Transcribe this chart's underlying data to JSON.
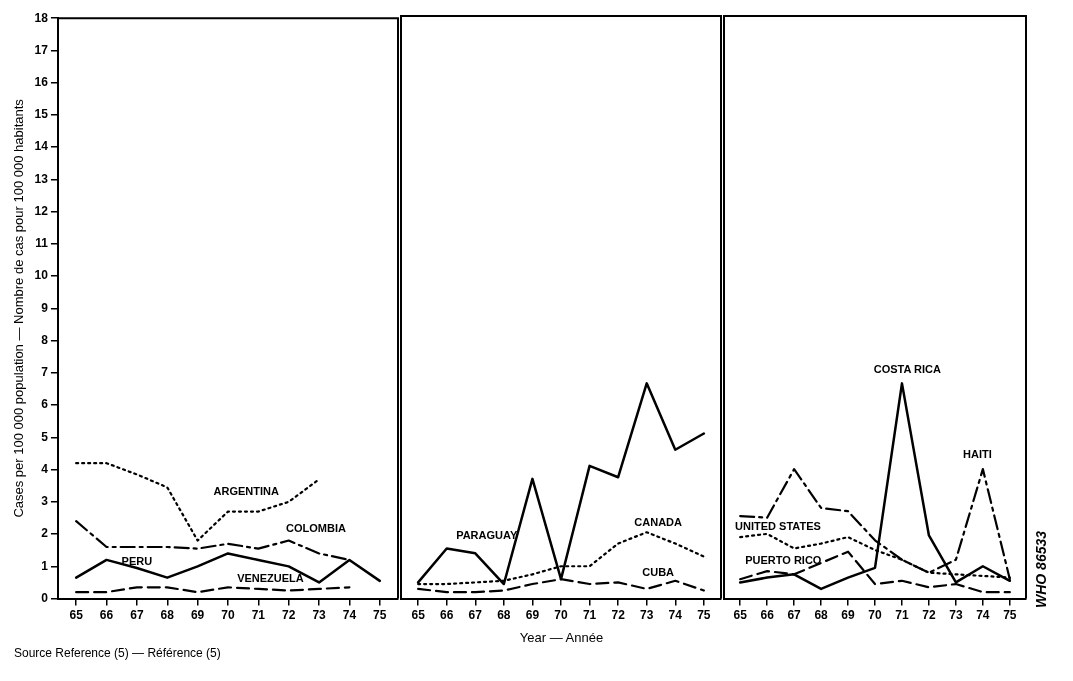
{
  "chart_data": [
    {
      "type": "line",
      "ylabel": "Cases per 100 000 population — Nombre de cas pour 100 000 habitants",
      "annotations": [
        "Source  Reference (5) — Référence (5)"
      ],
      "x": [
        65,
        66,
        67,
        68,
        69,
        70,
        71,
        72,
        73,
        74,
        75
      ],
      "xlim": [
        64.4,
        75.6
      ],
      "xticks": [
        65,
        66,
        67,
        68,
        69,
        70,
        71,
        72,
        73,
        74,
        75
      ],
      "ylim": [
        0,
        18
      ],
      "yticks": [
        0,
        1,
        2,
        3,
        4,
        5,
        6,
        7,
        8,
        9,
        10,
        11,
        12,
        13,
        14,
        15,
        16,
        17,
        18
      ],
      "grid": false,
      "legend": false,
      "marker": "none",
      "series": [
        {
          "name": "ARGENTINA",
          "color": "#000000",
          "line_style": "dotted",
          "values": [
            4.2,
            4.2,
            3.85,
            3.45,
            1.8,
            2.7,
            2.7,
            3.0,
            3.7,
            null,
            null
          ]
        },
        {
          "name": "COLOMBIA",
          "color": "#000000",
          "line_style": "dashdot",
          "values": [
            2.4,
            1.6,
            1.6,
            1.6,
            1.55,
            1.7,
            1.55,
            1.8,
            1.4,
            1.2,
            null
          ]
        },
        {
          "name": "PERU",
          "color": "#000000",
          "line_style": "solid",
          "values": [
            0.65,
            1.2,
            0.95,
            0.65,
            1.0,
            1.4,
            1.2,
            1.0,
            0.5,
            1.2,
            0.55
          ]
        },
        {
          "name": "VENEZUELA",
          "color": "#000000",
          "line_style": "dashed",
          "values": [
            0.2,
            0.2,
            0.35,
            0.35,
            0.2,
            0.35,
            0.3,
            0.25,
            0.3,
            0.35,
            null
          ]
        }
      ]
    },
    {
      "type": "line",
      "xlabel": "Year — Année",
      "x": [
        65,
        66,
        67,
        68,
        69,
        70,
        71,
        72,
        73,
        74,
        75
      ],
      "xlim": [
        64.4,
        75.6
      ],
      "xticks": [
        65,
        66,
        67,
        68,
        69,
        70,
        71,
        72,
        73,
        74,
        75
      ],
      "ylim": [
        0,
        18
      ],
      "yticks": [
        0,
        1,
        2,
        3,
        4,
        5,
        6,
        7,
        8,
        9,
        10,
        11,
        12,
        13,
        14,
        15,
        16,
        17,
        18
      ],
      "tick_labels": "x",
      "grid": false,
      "legend": false,
      "marker": "none",
      "series": [
        {
          "name": "PARAGUAY",
          "color": "#000000",
          "line_style": "solid",
          "values": [
            0.5,
            1.55,
            1.4,
            0.45,
            3.7,
            0.6,
            4.1,
            3.75,
            6.65,
            4.6,
            5.1
          ]
        },
        {
          "name": "CANADA",
          "color": "#000000",
          "line_style": "dotted",
          "values": [
            0.45,
            0.45,
            0.5,
            0.55,
            0.75,
            1.0,
            1.0,
            1.7,
            2.05,
            1.7,
            1.3
          ]
        },
        {
          "name": "CUBA",
          "color": "#000000",
          "line_style": "dashed",
          "values": [
            0.3,
            0.2,
            0.2,
            0.25,
            0.45,
            0.6,
            0.45,
            0.5,
            0.3,
            0.55,
            0.25
          ]
        }
      ]
    },
    {
      "type": "line",
      "annotations": [
        "WHO 86533"
      ],
      "x": [
        65,
        66,
        67,
        68,
        69,
        70,
        71,
        72,
        73,
        74,
        75
      ],
      "xlim": [
        64.4,
        75.6
      ],
      "xticks": [
        65,
        66,
        67,
        68,
        69,
        70,
        71,
        72,
        73,
        74,
        75
      ],
      "ylim": [
        0,
        18
      ],
      "yticks": [
        0,
        1,
        2,
        3,
        4,
        5,
        6,
        7,
        8,
        9,
        10,
        11,
        12,
        13,
        14,
        15,
        16,
        17,
        18
      ],
      "tick_labels": "x",
      "grid": false,
      "legend": false,
      "marker": "none",
      "series": [
        {
          "name": "COSTA RICA",
          "color": "#000000",
          "line_style": "solid",
          "values": [
            0.5,
            0.65,
            0.75,
            0.3,
            0.65,
            0.95,
            6.65,
            1.95,
            0.5,
            1.0,
            0.55
          ]
        },
        {
          "name": "HAITI",
          "color": "#000000",
          "line_style": "dashdot",
          "values": [
            2.55,
            2.5,
            4.0,
            2.8,
            2.7,
            1.8,
            1.2,
            0.8,
            1.2,
            4.0,
            0.6
          ]
        },
        {
          "name": "UNITED STATES",
          "color": "#000000",
          "line_style": "dotted",
          "values": [
            1.9,
            2.0,
            1.55,
            1.7,
            1.9,
            1.5,
            1.2,
            0.8,
            0.75,
            0.7,
            0.65
          ]
        },
        {
          "name": "PUERTO RICO",
          "color": "#000000",
          "line_style": "dashed",
          "values": [
            0.6,
            0.85,
            0.75,
            1.1,
            1.45,
            0.45,
            0.55,
            0.35,
            0.45,
            0.2,
            0.2
          ]
        }
      ]
    }
  ]
}
